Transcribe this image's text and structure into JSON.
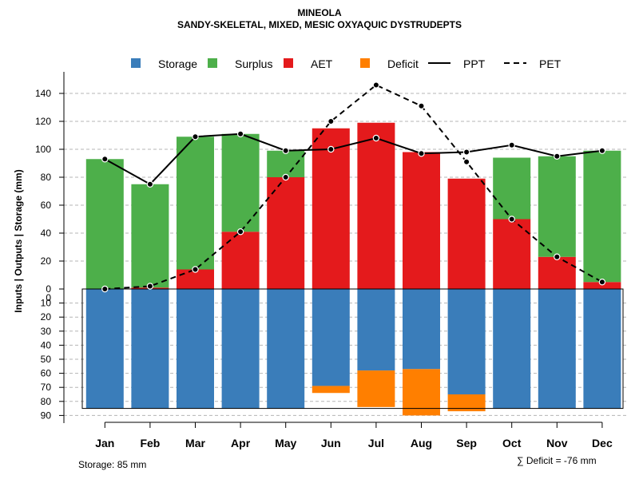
{
  "chart_data": {
    "type": "bar",
    "title": "MINEOLA",
    "subtitle": "SANDY-SKELETAL, MIXED, MESIC OXYAQUIC DYSTRUDEPTS",
    "ylabel": "Inputs | Outputs | Storage    (mm)",
    "categories": [
      "Jan",
      "Feb",
      "Mar",
      "Apr",
      "May",
      "Jun",
      "Jul",
      "Aug",
      "Sep",
      "Oct",
      "Nov",
      "Dec"
    ],
    "ylim_upper": [
      0,
      150
    ],
    "ylim_lower": [
      0,
      90
    ],
    "upper_ticks": [
      0,
      20,
      40,
      60,
      80,
      100,
      120,
      140
    ],
    "lower_ticks": [
      0,
      10,
      20,
      30,
      40,
      50,
      60,
      70,
      80,
      90
    ],
    "legend": [
      {
        "label": "Storage",
        "kind": "box",
        "color": "#3A7DBA"
      },
      {
        "label": "Surplus",
        "kind": "box",
        "color": "#4DAF4A"
      },
      {
        "label": "AET",
        "kind": "box",
        "color": "#E41A1C"
      },
      {
        "label": "Deficit",
        "kind": "box",
        "color": "#FF7F00"
      },
      {
        "label": "PPT",
        "kind": "solid",
        "color": "#000000"
      },
      {
        "label": "PET",
        "kind": "dashed",
        "color": "#000000"
      }
    ],
    "series": [
      {
        "name": "AET",
        "color": "#E41A1C",
        "values": [
          0,
          1,
          14,
          41,
          80,
          115,
          119,
          98,
          79,
          50,
          23,
          5
        ]
      },
      {
        "name": "Surplus",
        "color": "#4DAF4A",
        "values": [
          93,
          74,
          95,
          70,
          19,
          0,
          0,
          0,
          0,
          44,
          72,
          94
        ]
      },
      {
        "name": "Storage",
        "color": "#3A7DBA",
        "values": [
          85,
          85,
          85,
          85,
          85,
          69,
          58,
          57,
          75,
          85,
          85,
          85
        ]
      },
      {
        "name": "Deficit",
        "color": "#FF7F00",
        "values": [
          0,
          0,
          0,
          0,
          0,
          5,
          26,
          33,
          12,
          0,
          0,
          0
        ]
      },
      {
        "name": "PPT",
        "color": "#000000",
        "values": [
          93,
          75,
          109,
          111,
          99,
          100,
          108,
          97,
          98,
          103,
          95,
          99
        ]
      },
      {
        "name": "PET",
        "color": "#000000",
        "values": [
          0,
          2,
          14,
          41,
          80,
          120,
          146,
          131,
          91,
          50,
          23,
          5
        ]
      }
    ],
    "storage_capacity": 85,
    "storage_note": "Storage: 85 mm",
    "deficit_note": "∑ Deficit = -76 mm"
  }
}
